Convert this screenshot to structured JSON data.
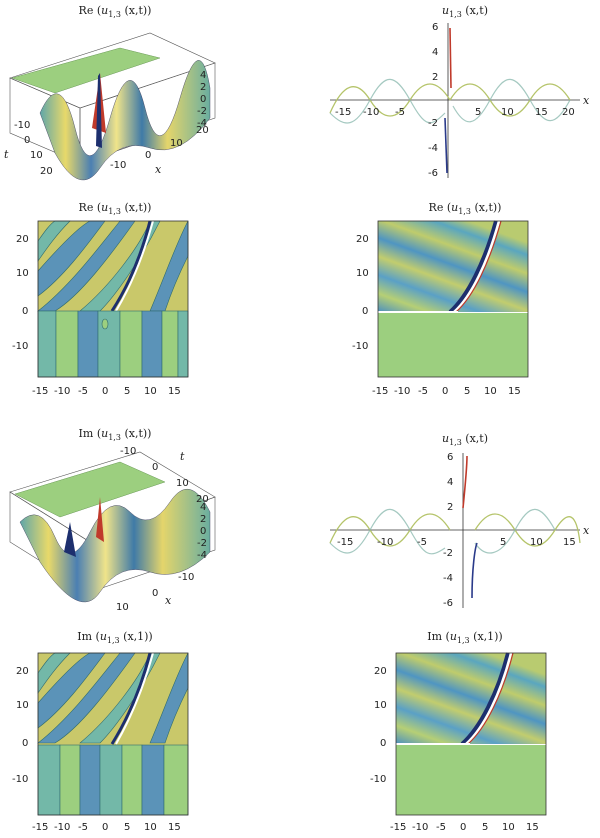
{
  "figure": {
    "panels": [
      {
        "id": "a",
        "title_prefix": "Re (",
        "title_var": "u",
        "title_sub": "1,3",
        "title_suffix": " (x,t))",
        "kind": "surface3d",
        "axis_x": "x",
        "axis_t": "t",
        "x_ticks": [
          "-10",
          "0",
          "10",
          "20"
        ],
        "t_ticks": [
          "-10",
          "0",
          "10",
          "20"
        ],
        "z_ticks": [
          "4",
          "2",
          "0",
          "-2",
          "-4"
        ]
      },
      {
        "id": "b",
        "title_prefix": "",
        "title_var": "u",
        "title_sub": "1,3",
        "title_suffix": " (x,t)",
        "kind": "curve",
        "axis_x": "x",
        "x_ticks": [
          "-15",
          "-10",
          "-5",
          "5",
          "10",
          "15",
          "20"
        ],
        "y_ticks": [
          "6",
          "4",
          "2",
          "-2",
          "-4",
          "-6"
        ]
      },
      {
        "id": "c",
        "title_prefix": "Re (",
        "title_var": "u",
        "title_sub": "1,3",
        "title_suffix": " (x,t))",
        "kind": "contour",
        "x_ticks": [
          "-15",
          "-10",
          "-5",
          "0",
          "5",
          "10",
          "15"
        ],
        "y_ticks": [
          "20",
          "10",
          "0",
          "-10"
        ]
      },
      {
        "id": "d",
        "title_prefix": "Re (",
        "title_var": "u",
        "title_sub": "1,3",
        "title_suffix": " (x,t))",
        "kind": "density",
        "x_ticks": [
          "-15",
          "-10",
          "-5",
          "0",
          "5",
          "10",
          "15"
        ],
        "y_ticks": [
          "20",
          "10",
          "0",
          "-10"
        ]
      },
      {
        "id": "e",
        "title_prefix": "Im (",
        "title_var": "u",
        "title_sub": "1,3",
        "title_suffix": " (x,t))",
        "kind": "surface3d",
        "axis_x": "x",
        "axis_t": "t",
        "x_ticks": [
          "10",
          "0",
          "-10"
        ],
        "t_ticks": [
          "-10",
          "0",
          "10",
          "20"
        ],
        "z_ticks": [
          "4",
          "2",
          "0",
          "-2",
          "-4"
        ]
      },
      {
        "id": "f",
        "title_prefix": "",
        "title_var": "u",
        "title_sub": "1,3",
        "title_suffix": " (x,t)",
        "kind": "curve",
        "axis_x": "x",
        "x_ticks": [
          "-15",
          "-10",
          "-5",
          "5",
          "10",
          "15"
        ],
        "y_ticks": [
          "6",
          "4",
          "2",
          "-2",
          "-4",
          "-6"
        ]
      },
      {
        "id": "g",
        "title_prefix": "Im (",
        "title_var": "u",
        "title_sub": "1,3",
        "title_suffix": " (x,1))",
        "kind": "contour",
        "x_ticks": [
          "-15",
          "-10",
          "-5",
          "0",
          "5",
          "10",
          "15"
        ],
        "y_ticks": [
          "20",
          "10",
          "0",
          "-10"
        ]
      },
      {
        "id": "h",
        "title_prefix": "Im (",
        "title_var": "u",
        "title_sub": "1,3",
        "title_suffix": " (x,1))",
        "kind": "density",
        "x_ticks": [
          "-15",
          "-10",
          "-5",
          "0",
          "5",
          "10",
          "15"
        ],
        "y_ticks": [
          "20",
          "10",
          "0",
          "-10"
        ]
      }
    ]
  },
  "colors": {
    "green": "#9ccf7f",
    "blue": "#5b93b8",
    "yellow": "#c9c86a",
    "teal": "#73b8a8",
    "dark": "#1d2f6e",
    "red": "#c03a2b"
  }
}
